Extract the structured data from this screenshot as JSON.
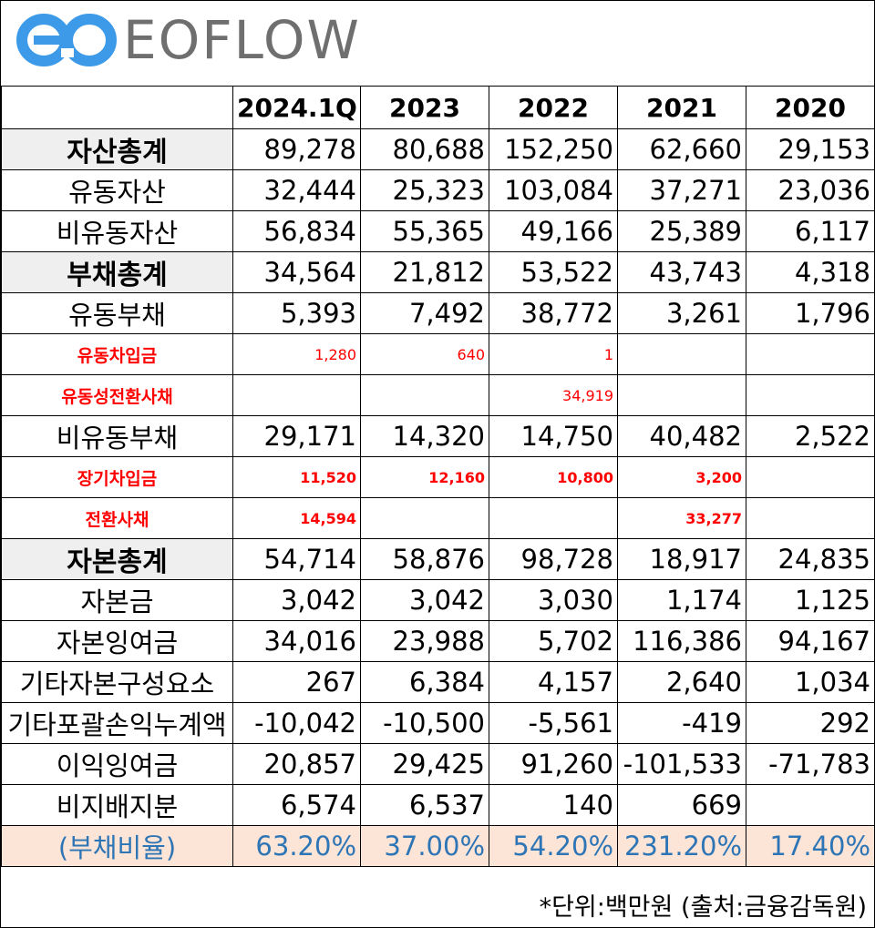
{
  "brand": {
    "logo_text": "EOFLOW",
    "colors": {
      "logo_blue": "#3d9ae8",
      "logo_gray": "#6f6f6f"
    }
  },
  "table": {
    "columns": [
      "2024.1Q",
      "2023",
      "2022",
      "2021",
      "2020"
    ],
    "rows": [
      {
        "label": "자산총계",
        "kind": "total",
        "values": [
          "89,278",
          "80,688",
          "152,250",
          "62,660",
          "29,153"
        ]
      },
      {
        "label": "유동자산",
        "kind": "normal",
        "values": [
          "32,444",
          "25,323",
          "103,084",
          "37,271",
          "23,036"
        ]
      },
      {
        "label": "비유동자산",
        "kind": "normal",
        "values": [
          "56,834",
          "55,365",
          "49,166",
          "25,389",
          "6,117"
        ]
      },
      {
        "label": "부채총계",
        "kind": "total",
        "values": [
          "34,564",
          "21,812",
          "53,522",
          "43,743",
          "4,318"
        ]
      },
      {
        "label": "유동부채",
        "kind": "normal",
        "values": [
          "5,393",
          "7,492",
          "38,772",
          "3,261",
          "1,796"
        ]
      },
      {
        "label": "유동차입금",
        "kind": "sub",
        "values": [
          "1,280",
          "640",
          "1",
          "",
          ""
        ]
      },
      {
        "label": "유동성전환사채",
        "kind": "sub",
        "values": [
          "",
          "",
          "34,919",
          "",
          ""
        ]
      },
      {
        "label": "비유동부채",
        "kind": "normal",
        "values": [
          "29,171",
          "14,320",
          "14,750",
          "40,482",
          "2,522"
        ]
      },
      {
        "label": "장기차입금",
        "kind": "subbold",
        "values": [
          "11,520",
          "12,160",
          "10,800",
          "3,200",
          ""
        ]
      },
      {
        "label": "전환사채",
        "kind": "subbold",
        "values": [
          "14,594",
          "",
          "",
          "33,277",
          ""
        ]
      },
      {
        "label": "자본총계",
        "kind": "total",
        "values": [
          "54,714",
          "58,876",
          "98,728",
          "18,917",
          "24,835"
        ]
      },
      {
        "label": "자본금",
        "kind": "normal",
        "values": [
          "3,042",
          "3,042",
          "3,030",
          "1,174",
          "1,125"
        ]
      },
      {
        "label": "자본잉여금",
        "kind": "normal",
        "values": [
          "34,016",
          "23,988",
          "5,702",
          "116,386",
          "94,167"
        ]
      },
      {
        "label": "기타자본구성요소",
        "kind": "normal",
        "values": [
          "267",
          "6,384",
          "4,157",
          "2,640",
          "1,034"
        ]
      },
      {
        "label": "기타포괄손익누계액",
        "kind": "normal",
        "values": [
          "-10,042",
          "-10,500",
          "-5,561",
          "-419",
          "292"
        ]
      },
      {
        "label": "이익잉여금",
        "kind": "normal",
        "values": [
          "20,857",
          "29,425",
          "91,260",
          "-101,533",
          "-71,783"
        ]
      },
      {
        "label": "비지배지분",
        "kind": "normal",
        "values": [
          "6,574",
          "6,537",
          "140",
          "669",
          ""
        ]
      },
      {
        "label": "(부채비율)",
        "kind": "ratio",
        "values": [
          "63.20%",
          "37.00%",
          "54.20%",
          "231.20%",
          "17.40%"
        ]
      }
    ]
  },
  "footnote": "*단위:백만원 (출처:금융감독원)"
}
